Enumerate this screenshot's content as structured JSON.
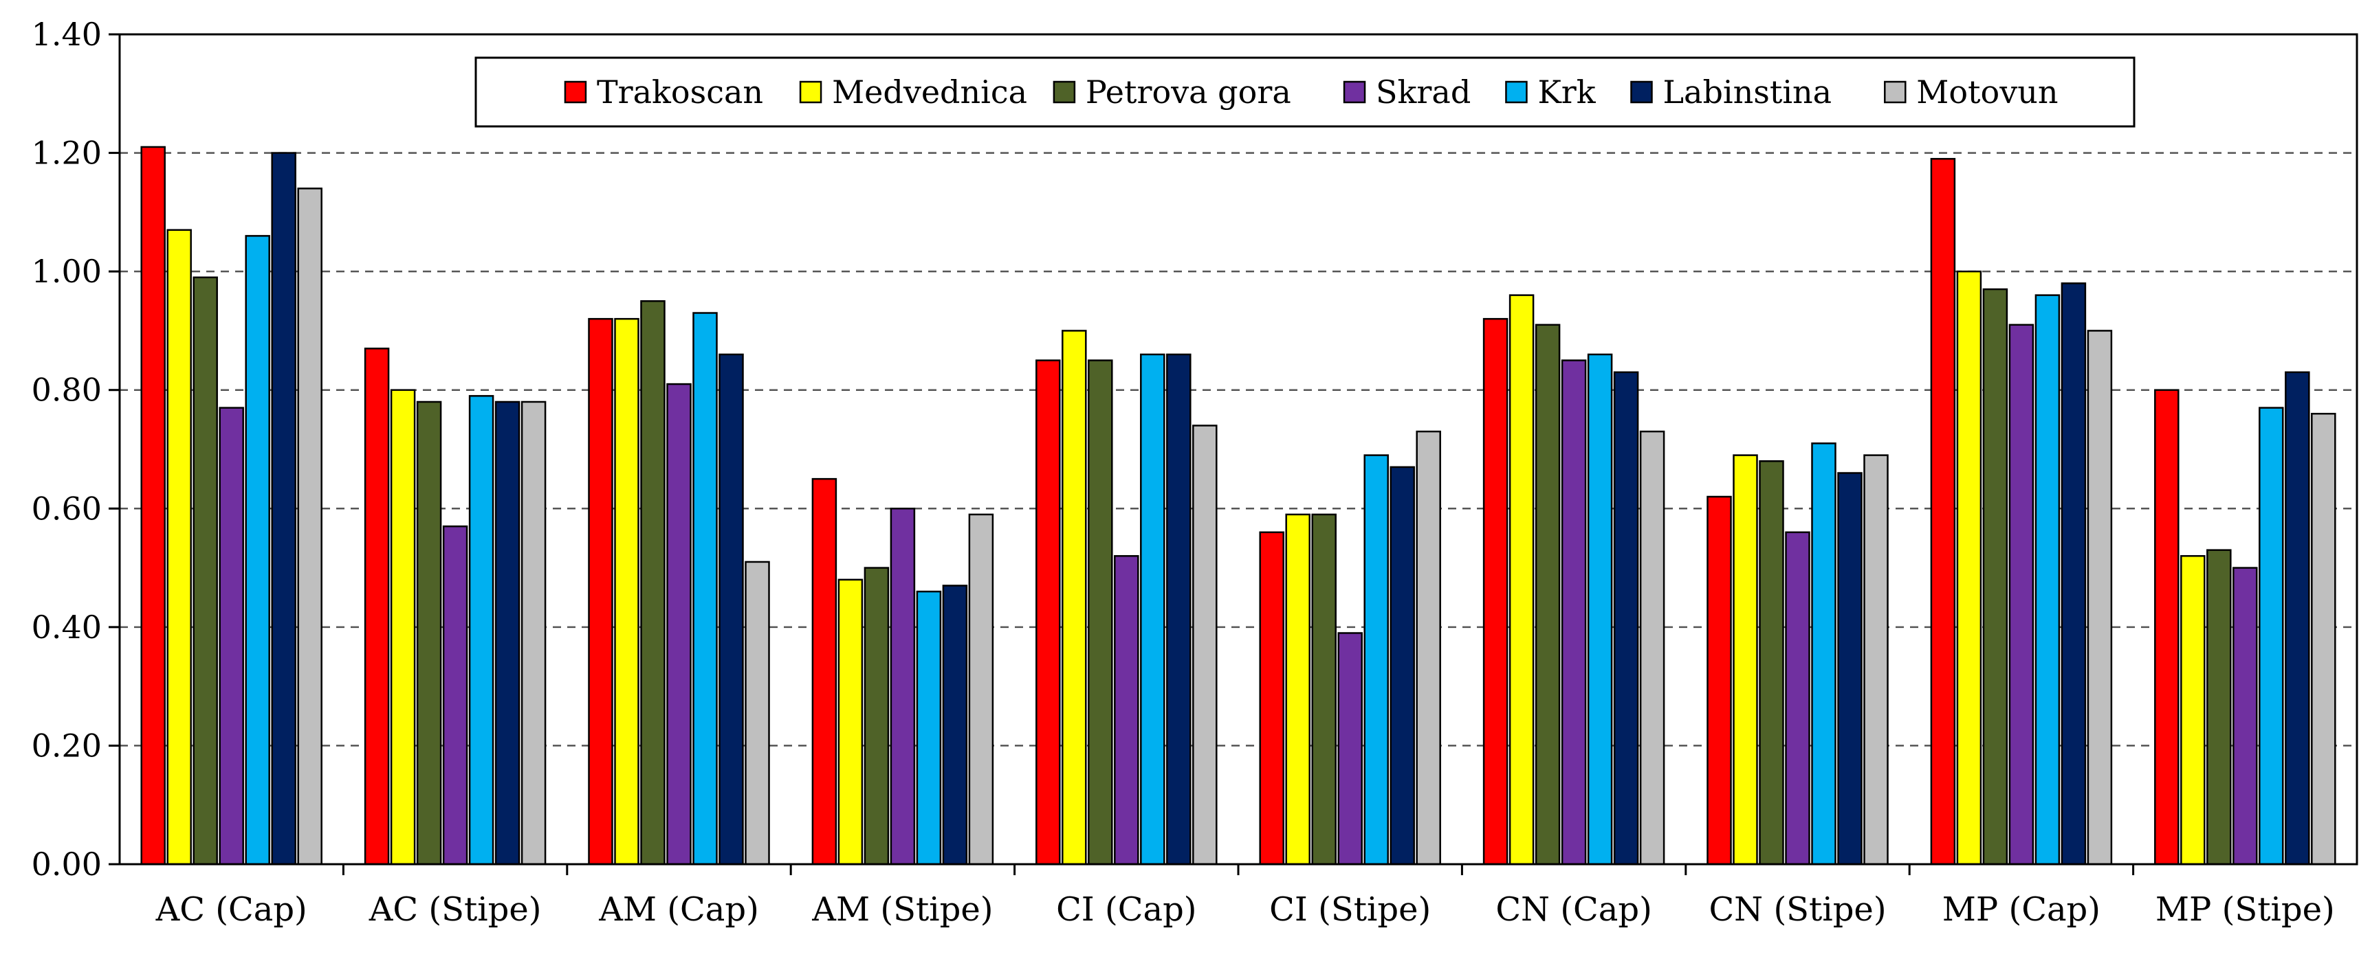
{
  "chart_data": {
    "type": "bar",
    "title": "",
    "xlabel": "",
    "ylabel": "",
    "ylim": [
      0,
      1.4
    ],
    "yticks": [
      "0.00",
      "0.20",
      "0.40",
      "0.60",
      "0.80",
      "1.00",
      "1.20",
      "1.40"
    ],
    "grid": "horizontal dashed",
    "legend_position": "top-center",
    "categories": [
      "AC (Cap)",
      "AC (Stipe)",
      "AM (Cap)",
      "AM (Stipe)",
      "CI (Cap)",
      "CI (Stipe)",
      "CN (Cap)",
      "CN (Stipe)",
      "MP (Cap)",
      "MP (Stipe)"
    ],
    "series": [
      {
        "name": "Trakoscan",
        "color": "#ff0000",
        "values": [
          1.21,
          0.87,
          0.92,
          0.65,
          0.85,
          0.56,
          0.92,
          0.62,
          1.19,
          0.8
        ]
      },
      {
        "name": "Medvednica",
        "color": "#ffff00",
        "values": [
          1.07,
          0.8,
          0.92,
          0.48,
          0.9,
          0.59,
          0.96,
          0.69,
          1.0,
          0.52
        ]
      },
      {
        "name": "Petrova gora",
        "color": "#4f6228",
        "values": [
          0.99,
          0.78,
          0.95,
          0.5,
          0.85,
          0.59,
          0.91,
          0.68,
          0.97,
          0.53
        ]
      },
      {
        "name": "Skrad",
        "color": "#7030a0",
        "values": [
          0.77,
          0.57,
          0.81,
          0.6,
          0.52,
          0.39,
          0.85,
          0.56,
          0.91,
          0.5
        ]
      },
      {
        "name": "Krk",
        "color": "#00b0f0",
        "values": [
          1.06,
          0.79,
          0.93,
          0.46,
          0.86,
          0.69,
          0.86,
          0.71,
          0.96,
          0.77
        ]
      },
      {
        "name": "Labinstina",
        "color": "#002060",
        "values": [
          1.2,
          0.78,
          0.86,
          0.47,
          0.86,
          0.67,
          0.83,
          0.66,
          0.98,
          0.83
        ]
      },
      {
        "name": "Motovun",
        "color": "#bfbfbf",
        "values": [
          1.14,
          0.78,
          0.51,
          0.59,
          0.74,
          0.73,
          0.73,
          0.69,
          0.9,
          0.76
        ]
      }
    ]
  }
}
